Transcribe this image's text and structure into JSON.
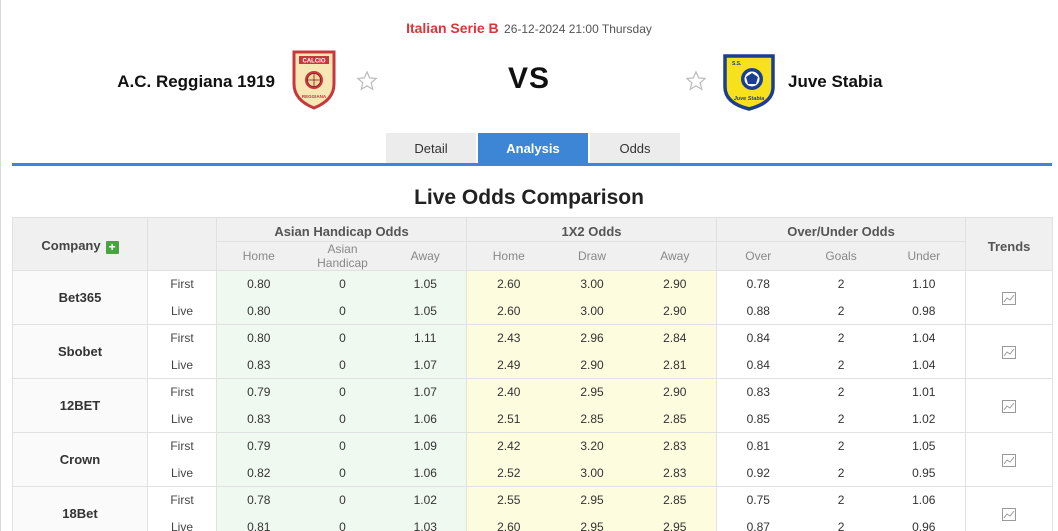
{
  "match": {
    "league": "Italian Serie B",
    "datetime": "26-12-2024 21:00 Thursday",
    "home_team": "A.C. Reggiana 1919",
    "away_team": "Juve Stabia",
    "vs_label": "VS"
  },
  "tabs": [
    {
      "label": "Detail",
      "active": false
    },
    {
      "label": "Analysis",
      "active": true
    },
    {
      "label": "Odds",
      "active": false
    }
  ],
  "section_title": "Live Odds Comparison",
  "table": {
    "company_header": "Company",
    "groups": {
      "asian": "Asian Handicap Odds",
      "x12": "1X2 Odds",
      "ou": "Over/Under Odds",
      "trends": "Trends"
    },
    "sub_headers": {
      "ah_home": "Home",
      "ah_line": "Asian Handicap",
      "ah_away": "Away",
      "x_home": "Home",
      "x_draw": "Draw",
      "x_away": "Away",
      "ou_over": "Over",
      "ou_goals": "Goals",
      "ou_under": "Under"
    },
    "companies": [
      {
        "name": "Bet365",
        "rows": [
          {
            "type": "First",
            "ah": [
              "0.80",
              "0",
              "1.05"
            ],
            "x12": [
              "2.60",
              "3.00",
              "2.90"
            ],
            "ou": [
              "0.78",
              "2",
              "1.10"
            ]
          },
          {
            "type": "Live",
            "ah": [
              "0.80",
              "0",
              "1.05"
            ],
            "x12": [
              "2.60",
              "3.00",
              "2.90"
            ],
            "ou": [
              "0.88",
              "2",
              "0.98"
            ]
          }
        ]
      },
      {
        "name": "Sbobet",
        "rows": [
          {
            "type": "First",
            "ah": [
              "0.80",
              "0",
              "1.11"
            ],
            "x12": [
              "2.43",
              "2.96",
              "2.84"
            ],
            "ou": [
              "0.84",
              "2",
              "1.04"
            ]
          },
          {
            "type": "Live",
            "ah": [
              "0.83",
              "0",
              "1.07"
            ],
            "x12": [
              "2.49",
              "2.90",
              "2.81"
            ],
            "ou": [
              "0.84",
              "2",
              "1.04"
            ]
          }
        ]
      },
      {
        "name": "12BET",
        "rows": [
          {
            "type": "First",
            "ah": [
              "0.79",
              "0",
              "1.07"
            ],
            "x12": [
              "2.40",
              "2.95",
              "2.90"
            ],
            "ou": [
              "0.83",
              "2",
              "1.01"
            ]
          },
          {
            "type": "Live",
            "ah": [
              "0.83",
              "0",
              "1.06"
            ],
            "x12": [
              "2.51",
              "2.85",
              "2.85"
            ],
            "ou": [
              "0.85",
              "2",
              "1.02"
            ]
          }
        ]
      },
      {
        "name": "Crown",
        "rows": [
          {
            "type": "First",
            "ah": [
              "0.79",
              "0",
              "1.09"
            ],
            "x12": [
              "2.42",
              "3.20",
              "2.83"
            ],
            "ou": [
              "0.81",
              "2",
              "1.05"
            ]
          },
          {
            "type": "Live",
            "ah": [
              "0.82",
              "0",
              "1.06"
            ],
            "x12": [
              "2.52",
              "3.00",
              "2.83"
            ],
            "ou": [
              "0.92",
              "2",
              "0.95"
            ]
          }
        ]
      },
      {
        "name": "18Bet",
        "rows": [
          {
            "type": "First",
            "ah": [
              "0.78",
              "0",
              "1.02"
            ],
            "x12": [
              "2.55",
              "2.95",
              "2.85"
            ],
            "ou": [
              "0.75",
              "2",
              "1.06"
            ]
          },
          {
            "type": "Live",
            "ah": [
              "0.81",
              "0",
              "1.03"
            ],
            "x12": [
              "2.60",
              "2.95",
              "2.95"
            ],
            "ou": [
              "0.87",
              "2",
              "0.96"
            ]
          }
        ]
      }
    ]
  },
  "colors": {
    "accent": "#3d86d6",
    "league": "#d9363a",
    "ah_bg": "#f0f9ef",
    "x12_bg": "#fdfcdf",
    "plus": "#4aa341"
  },
  "icons": {
    "star": "star-outline-icon",
    "trend": "line-chart-icon",
    "plus": "plus-icon",
    "home_logo": "reggiana-crest",
    "away_logo": "juve-stabia-crest"
  },
  "logo_text": {
    "home_top": "CALCIO",
    "home_side": "ASSOCIAZ.",
    "home_side2": "REGGIANA",
    "away_bottom": "Juve Stabia",
    "away_top": "S.S."
  }
}
